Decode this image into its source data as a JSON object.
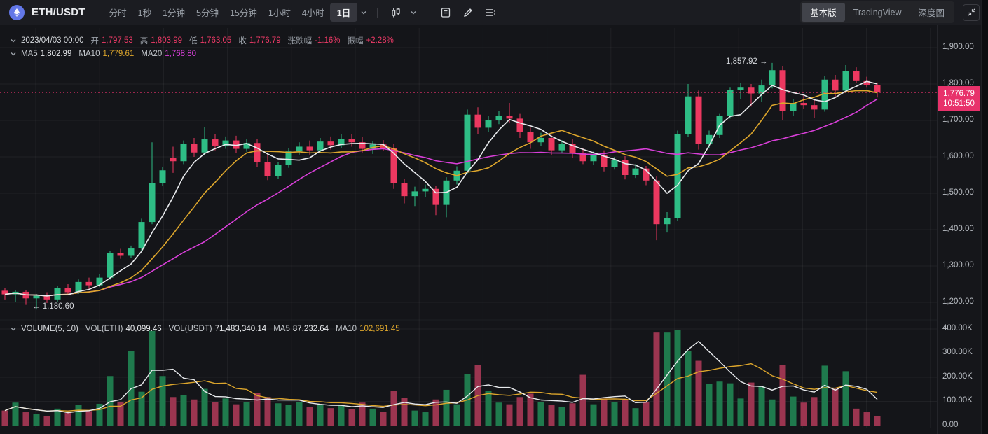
{
  "header": {
    "symbol": "ETH/USDT",
    "timeframes": [
      "分时",
      "1秒",
      "1分钟",
      "5分钟",
      "15分钟",
      "1小时",
      "4小时",
      "1日"
    ],
    "active_timeframe": "1日",
    "view_tabs": [
      "基本版",
      "TradingView",
      "深度图"
    ],
    "active_view_tab": "基本版"
  },
  "info_bar": {
    "date": "2023/04/03 00:00",
    "open_label": "开",
    "open": "1,797.53",
    "high_label": "高",
    "high": "1,803.99",
    "low_label": "低",
    "low": "1,763.05",
    "close_label": "收",
    "close": "1,776.79",
    "change_label": "涨跌幅",
    "change": "-1.16%",
    "amplitude_label": "振幅",
    "amplitude": "+2.28%"
  },
  "ma_bar": {
    "ma5_label": "MA5",
    "ma5": "1,802.99",
    "ma10_label": "MA10",
    "ma10": "1,779.61",
    "ma20_label": "MA20",
    "ma20": "1,768.80"
  },
  "volume_bar": {
    "title": "VOLUME(5, 10)",
    "vol_eth_label": "VOL(ETH)",
    "vol_eth": "40,099.46",
    "vol_usdt_label": "VOL(USDT)",
    "vol_usdt": "71,483,340.14",
    "ma5_label": "MA5",
    "ma5": "87,232.64",
    "ma10_label": "MA10",
    "ma10": "102,691.45"
  },
  "price_axis": {
    "labels": [
      "1,900.00",
      "1,800.00",
      "1,700.00",
      "1,600.00",
      "1,500.00",
      "1,400.00",
      "1,300.00",
      "1,200.00"
    ]
  },
  "volume_axis": {
    "labels": [
      "400.00K",
      "300.00K",
      "200.00K",
      "100.00K",
      "0.00"
    ]
  },
  "last_price_badge": {
    "price": "1,776.79",
    "time": "10:51:50"
  },
  "annotations": {
    "high": "1,857.92",
    "low": "1,180.60"
  },
  "colors": {
    "up": "#2ebd85",
    "down": "#ec3860",
    "vol_up": "#1f7a4d",
    "vol_down": "#9b3550",
    "ma5": "#e8eaed",
    "ma10": "#dda62c",
    "ma20": "#d93fd9",
    "accent_pink": "#e8326b",
    "grid": "rgba(255,255,255,0.055)"
  },
  "chart_data": {
    "type": "candlestick",
    "note": "ETH/USDT daily candles; format [open, high, low, close, volume_in_K_ETH]; values estimated from axis gridlines",
    "price_ticks": [
      1900,
      1800,
      1700,
      1600,
      1500,
      1400,
      1300,
      1200
    ],
    "volume_ticks_K": [
      400,
      300,
      200,
      100,
      0
    ],
    "last_price": 1776.79,
    "high_annotation": 1857.92,
    "high_annotation_index": 73,
    "low_annotation": 1180.6,
    "low_annotation_index": 3,
    "overlays": [
      "MA5",
      "MA10",
      "MA20"
    ],
    "volume_overlays": [
      "VOLMA5",
      "VOLMA10"
    ],
    "candles": [
      [
        1232,
        1240,
        1208,
        1222,
        62
      ],
      [
        1222,
        1234,
        1202,
        1229,
        95
      ],
      [
        1229,
        1233,
        1193,
        1211,
        55
      ],
      [
        1211,
        1223,
        1180.6,
        1218,
        48
      ],
      [
        1218,
        1228,
        1198,
        1208,
        40
      ],
      [
        1208,
        1245,
        1202,
        1239,
        70
      ],
      [
        1239,
        1250,
        1220,
        1228,
        52
      ],
      [
        1228,
        1263,
        1223,
        1256,
        85
      ],
      [
        1256,
        1268,
        1237,
        1247,
        60
      ],
      [
        1247,
        1278,
        1242,
        1268,
        90
      ],
      [
        1268,
        1342,
        1262,
        1336,
        205
      ],
      [
        1336,
        1347,
        1320,
        1328,
        98
      ],
      [
        1328,
        1356,
        1322,
        1348,
        310
      ],
      [
        1348,
        1430,
        1342,
        1421,
        140
      ],
      [
        1421,
        1640,
        1415,
        1527,
        392
      ],
      [
        1527,
        1572,
        1520,
        1563,
        205
      ],
      [
        1598,
        1628,
        1556,
        1588,
        118
      ],
      [
        1588,
        1645,
        1580,
        1635,
        125
      ],
      [
        1635,
        1652,
        1600,
        1612,
        108
      ],
      [
        1612,
        1682,
        1605,
        1648,
        152
      ],
      [
        1648,
        1662,
        1618,
        1630,
        98
      ],
      [
        1630,
        1656,
        1622,
        1645,
        112
      ],
      [
        1645,
        1658,
        1610,
        1622,
        88
      ],
      [
        1622,
        1648,
        1614,
        1638,
        96
      ],
      [
        1638,
        1650,
        1572,
        1586,
        135
      ],
      [
        1586,
        1612,
        1536,
        1548,
        118
      ],
      [
        1548,
        1586,
        1540,
        1578,
        92
      ],
      [
        1578,
        1624,
        1570,
        1615,
        85
      ],
      [
        1615,
        1640,
        1606,
        1628,
        96
      ],
      [
        1628,
        1645,
        1606,
        1618,
        78
      ],
      [
        1618,
        1652,
        1610,
        1642,
        88
      ],
      [
        1642,
        1656,
        1620,
        1632,
        72
      ],
      [
        1632,
        1662,
        1624,
        1650,
        84
      ],
      [
        1650,
        1663,
        1628,
        1640,
        68
      ],
      [
        1640,
        1654,
        1612,
        1622,
        95
      ],
      [
        1622,
        1642,
        1608,
        1634,
        70
      ],
      [
        1634,
        1646,
        1616,
        1625,
        58
      ],
      [
        1625,
        1636,
        1512,
        1528,
        142
      ],
      [
        1528,
        1540,
        1472,
        1492,
        115
      ],
      [
        1492,
        1518,
        1465,
        1505,
        62
      ],
      [
        1505,
        1524,
        1490,
        1512,
        55
      ],
      [
        1512,
        1520,
        1440,
        1468,
        108
      ],
      [
        1468,
        1544,
        1434,
        1535,
        148
      ],
      [
        1535,
        1574,
        1524,
        1562,
        88
      ],
      [
        1562,
        1730,
        1552,
        1716,
        212
      ],
      [
        1716,
        1736,
        1662,
        1680,
        252
      ],
      [
        1680,
        1712,
        1668,
        1700,
        142
      ],
      [
        1700,
        1726,
        1690,
        1712,
        95
      ],
      [
        1712,
        1748,
        1692,
        1705,
        88
      ],
      [
        1705,
        1718,
        1652,
        1668,
        118
      ],
      [
        1668,
        1680,
        1622,
        1640,
        132
      ],
      [
        1640,
        1666,
        1630,
        1652,
        96
      ],
      [
        1652,
        1660,
        1604,
        1618,
        84
      ],
      [
        1618,
        1646,
        1610,
        1635,
        76
      ],
      [
        1635,
        1648,
        1598,
        1610,
        92
      ],
      [
        1610,
        1624,
        1580,
        1588,
        210
      ],
      [
        1588,
        1615,
        1578,
        1605,
        88
      ],
      [
        1605,
        1618,
        1560,
        1572,
        112
      ],
      [
        1572,
        1600,
        1565,
        1592,
        96
      ],
      [
        1592,
        1602,
        1538,
        1550,
        105
      ],
      [
        1550,
        1580,
        1542,
        1568,
        72
      ],
      [
        1568,
        1575,
        1522,
        1535,
        98
      ],
      [
        1535,
        1546,
        1371,
        1415,
        385
      ],
      [
        1415,
        1448,
        1392,
        1431,
        385
      ],
      [
        1431,
        1672,
        1425,
        1662,
        395
      ],
      [
        1662,
        1800,
        1655,
        1766,
        310
      ],
      [
        1766,
        1782,
        1620,
        1635,
        268
      ],
      [
        1635,
        1672,
        1625,
        1660,
        172
      ],
      [
        1660,
        1718,
        1652,
        1712,
        182
      ],
      [
        1712,
        1790,
        1705,
        1783,
        175
      ],
      [
        1783,
        1802,
        1758,
        1790,
        112
      ],
      [
        1790,
        1800,
        1738,
        1774,
        178
      ],
      [
        1774,
        1812,
        1752,
        1796,
        162
      ],
      [
        1796,
        1857.92,
        1788,
        1838,
        108
      ],
      [
        1838,
        1848,
        1700,
        1725,
        252
      ],
      [
        1725,
        1758,
        1712,
        1748,
        120
      ],
      [
        1748,
        1768,
        1732,
        1742,
        95
      ],
      [
        1742,
        1756,
        1706,
        1730,
        118
      ],
      [
        1730,
        1822,
        1724,
        1812,
        248
      ],
      [
        1812,
        1825,
        1765,
        1782,
        152
      ],
      [
        1782,
        1852,
        1775,
        1836,
        225
      ],
      [
        1836,
        1846,
        1802,
        1808,
        70
      ],
      [
        1808,
        1820,
        1790,
        1798,
        55
      ],
      [
        1797.53,
        1803.99,
        1763.05,
        1776.79,
        40
      ]
    ]
  }
}
